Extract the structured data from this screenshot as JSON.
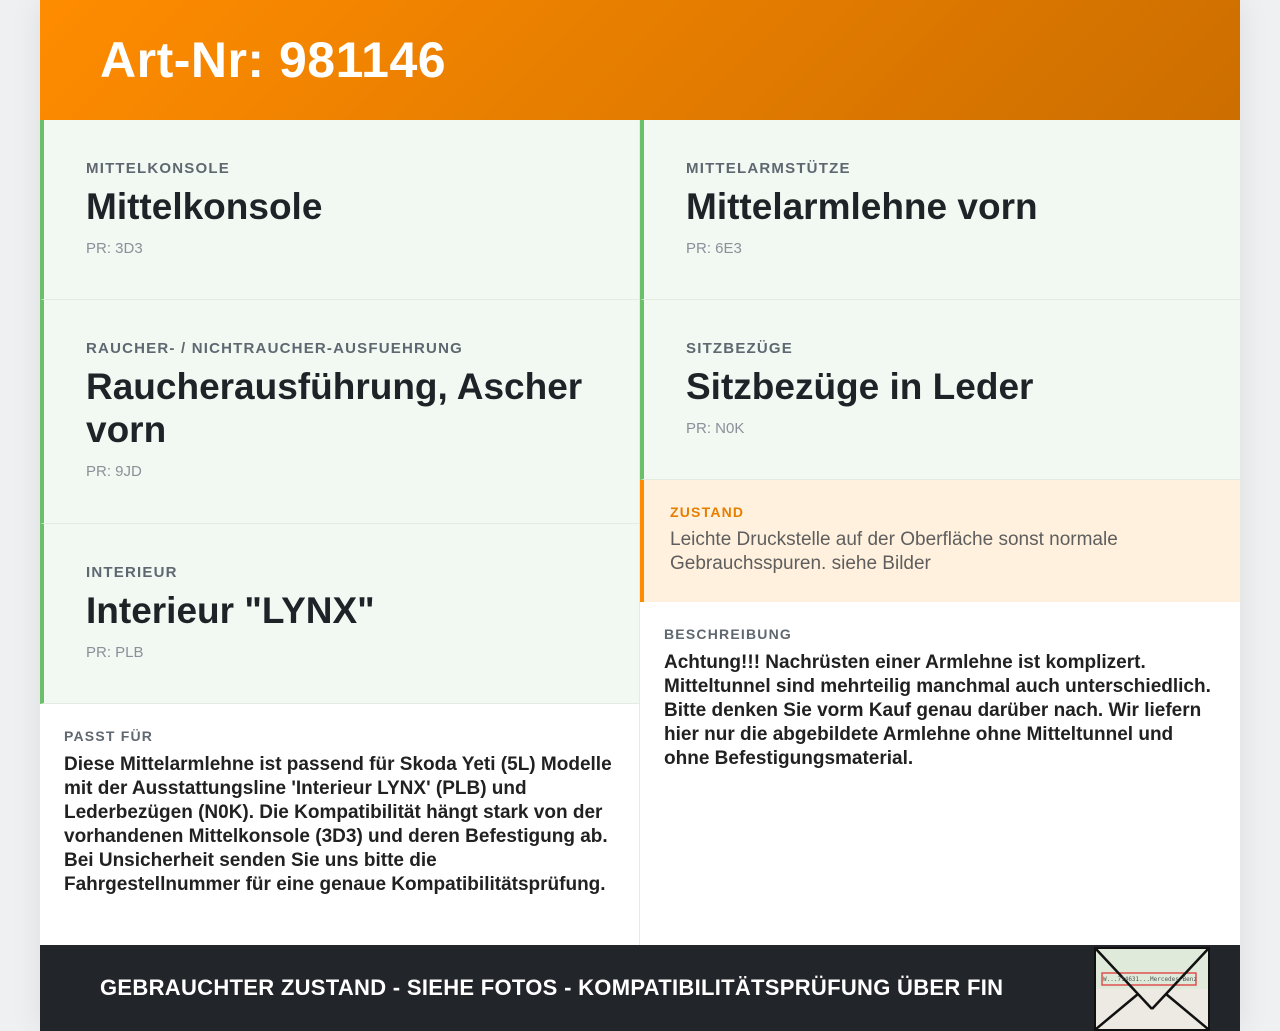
{
  "header": {
    "title": "Art-Nr: 981146"
  },
  "left": [
    {
      "label": "MITTELKONSOLE",
      "title": "Mittelkonsole",
      "pr": "PR: 3D3"
    },
    {
      "label": "RAUCHER- / NICHTRAUCHER-AUSFUEHRUNG",
      "title": "Raucherausführung, Ascher vorn",
      "pr": "PR: 9JD"
    },
    {
      "label": "INTERIEUR",
      "title": "Interieur \"LYNX\"",
      "pr": "PR: PLB"
    }
  ],
  "right": [
    {
      "label": "MITTELARMSTÜTZE",
      "title": "Mittelarmlehne vorn",
      "pr": "PR: 6E3"
    },
    {
      "label": "SITZBEZÜGE",
      "title": "Sitzbezüge in Leder",
      "pr": "PR: N0K"
    }
  ],
  "zustand": {
    "label": "ZUSTAND",
    "text": "Leichte Druckstelle auf der Oberfläche sonst normale Gebrauchsspuren. siehe Bilder"
  },
  "passt": {
    "label": "PASST FÜR",
    "text": "Diese Mittelarmlehne ist passend für Skoda Yeti (5L) Modelle mit der Ausstattungsline 'Interieur LYNX' (PLB) und Lederbezügen (N0K). Die Kompatibilität hängt stark von der vorhandenen Mittelkonsole (3D3) und deren Befestigung ab. Bei Unsicherheit senden Sie uns bitte die Fahrgestellnummer für eine genaue Kompatibilitätsprüfung."
  },
  "beschreibung": {
    "label": "BESCHREIBUNG",
    "text": "Achtung!!! Nachrüsten einer Armlehne ist komplizert. Mitteltunnel sind mehrteilig manchmal auch unterschiedlich. Bitte denken Sie vorm Kauf genau darüber nach. Wir liefern hier nur die abgebildete Armlehne ohne Mitteltunnel und ohne Befestigungsmaterial."
  },
  "footer": {
    "text": "GEBRAUCHTER ZUSTAND - SIEHE FOTOS - KOMPATIBILITÄTSPRÜFUNG ÜBER FIN",
    "thumb_text": "W...714631...Mercedes-Benz"
  }
}
